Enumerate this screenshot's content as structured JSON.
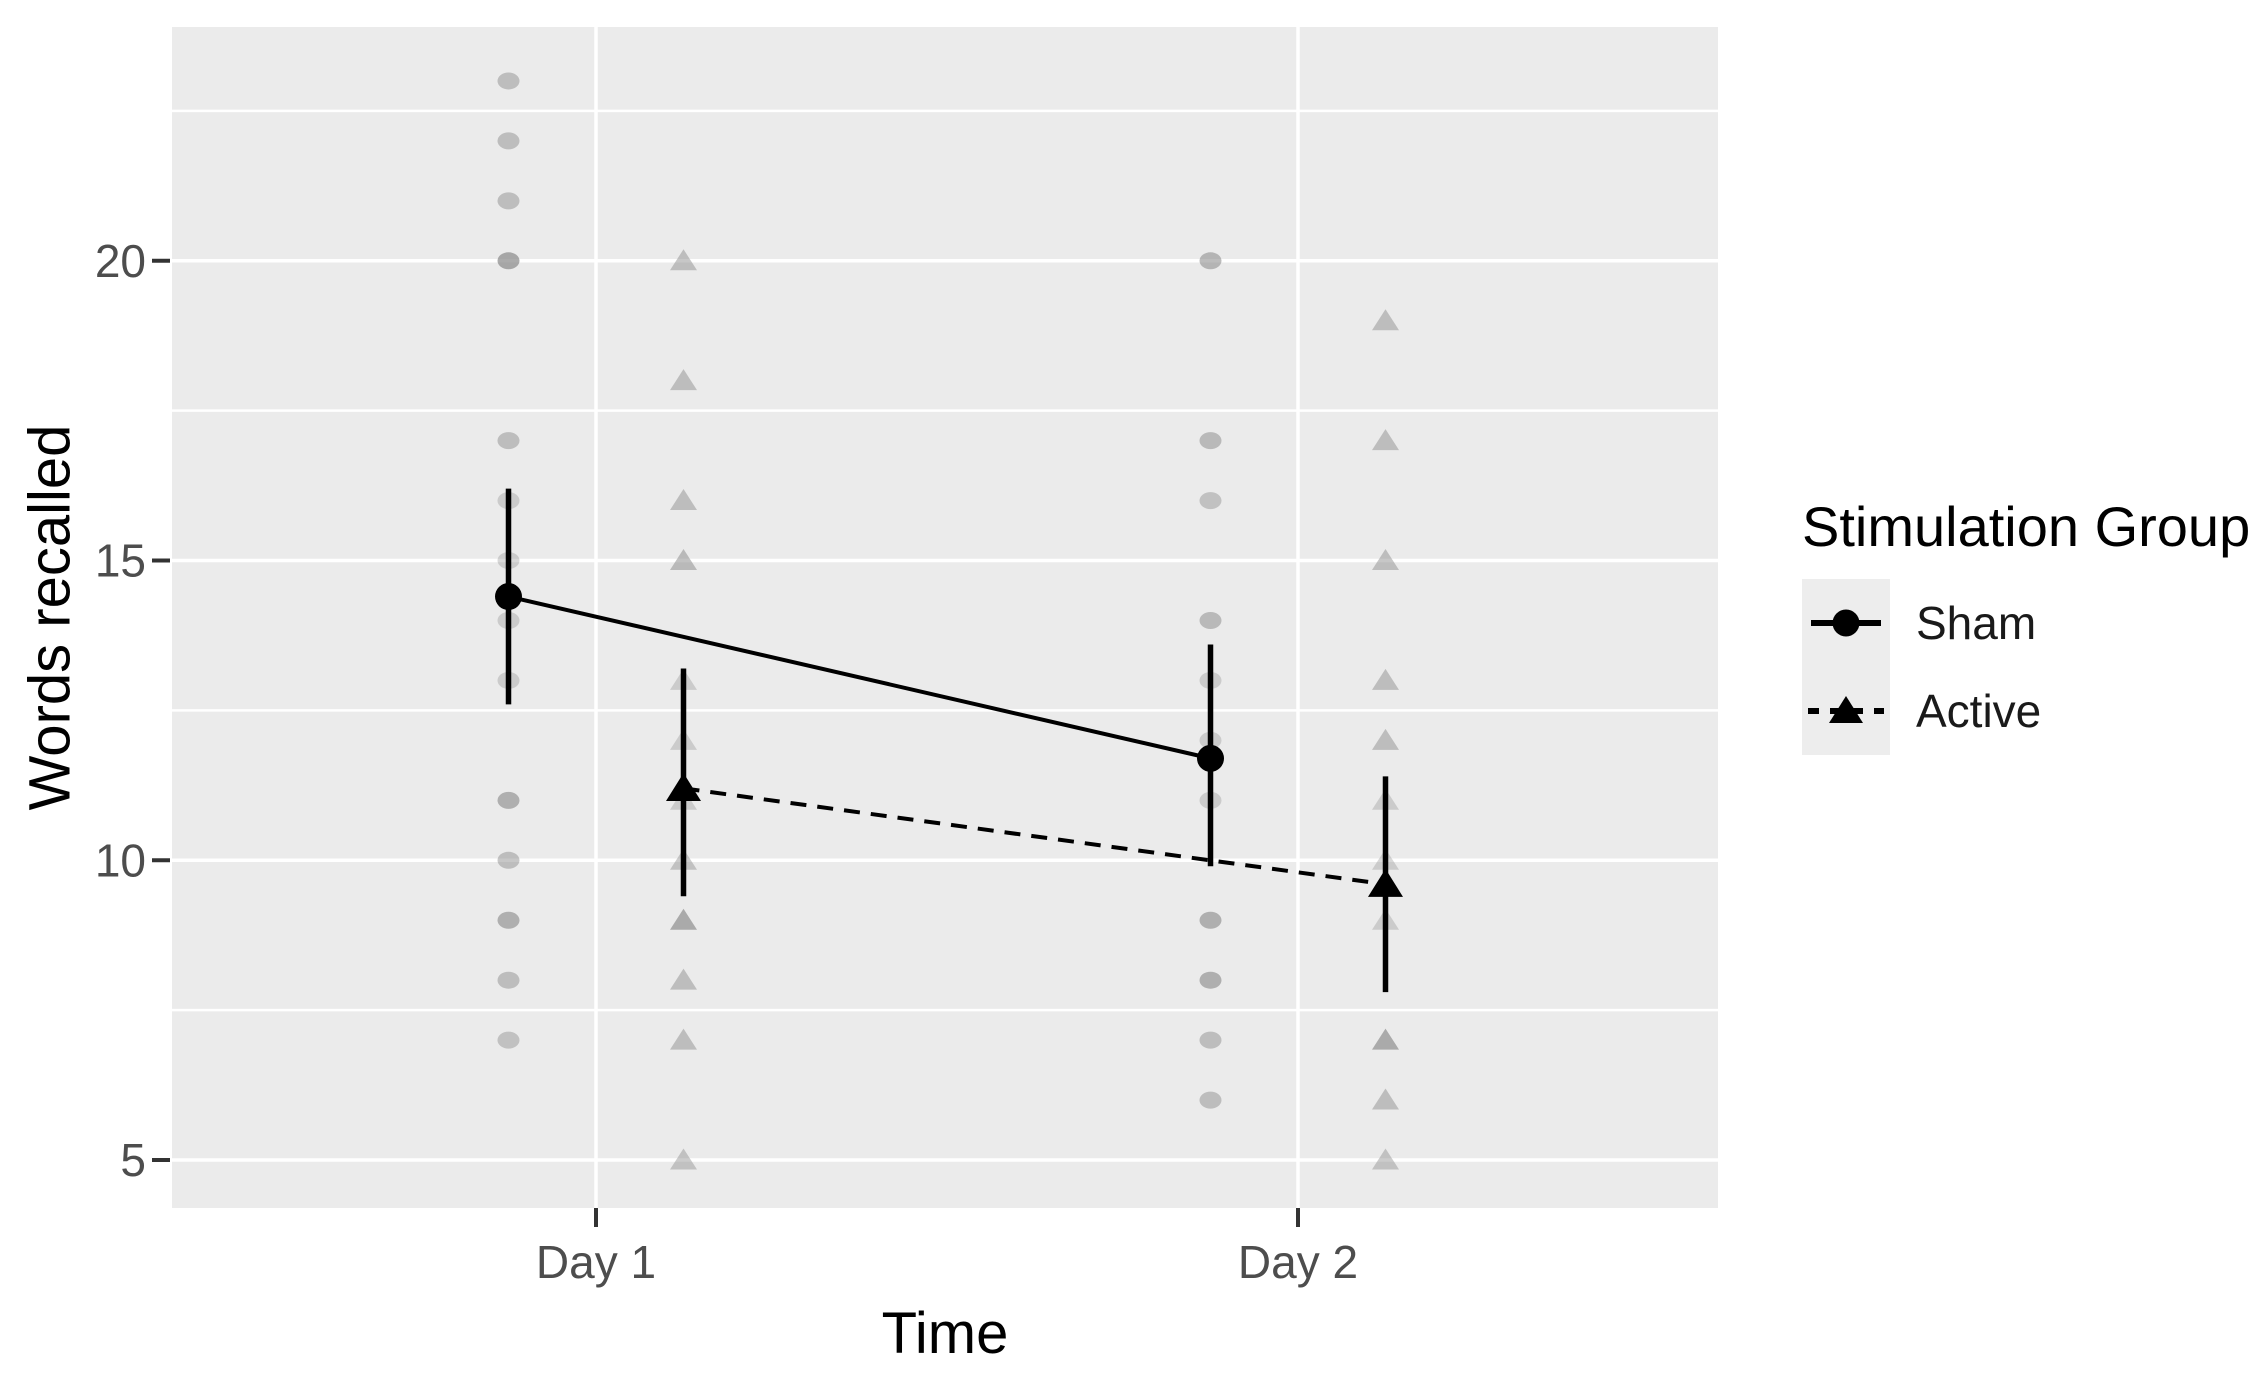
{
  "page": {
    "background": "#FFFFFF"
  },
  "chart_data": {
    "type": "line",
    "title": "",
    "xlabel": "Time",
    "ylabel": "Words recalled",
    "categories": [
      "Day 1",
      "Day 2"
    ],
    "ylim": [
      4.2,
      23.9
    ],
    "yticks": [
      5,
      10,
      15,
      20
    ],
    "ytick_labels": [
      "5",
      "10",
      "15",
      "20"
    ],
    "yticks_minor": [
      7.5,
      12.5,
      17.5,
      22.5
    ],
    "grid": true,
    "legend_title": "Stimulation Group",
    "legend_position": "right",
    "panel_bg": "#EBEBEB",
    "colors": {
      "raw_point": "#8F8F8F",
      "grid": "#FFFFFF",
      "tick_label": "#4D4D4D",
      "tick_mark": "#333333",
      "axis_title": "#000000",
      "series": "#000000",
      "legend_key_bg": "#EDEDED"
    },
    "series": [
      {
        "name": "Sham",
        "marker": "circle",
        "linestyle": "solid",
        "color": "#000000",
        "means": [
          14.4,
          11.7
        ],
        "ci_low": [
          12.6,
          9.9
        ],
        "ci_high": [
          16.2,
          13.6
        ],
        "raw_points": [
          [
            [
              23,
              0.5
            ],
            [
              22,
              0.5
            ],
            [
              21,
              0.5
            ],
            [
              20,
              0.75
            ],
            [
              17,
              0.5
            ],
            [
              16,
              0.35
            ],
            [
              15,
              0.35
            ],
            [
              14,
              0.35
            ],
            [
              13,
              0.35
            ],
            [
              11,
              0.65
            ],
            [
              10,
              0.5
            ],
            [
              9,
              0.65
            ],
            [
              8,
              0.5
            ],
            [
              7,
              0.45
            ]
          ],
          [
            [
              20,
              0.6
            ],
            [
              17,
              0.55
            ],
            [
              16,
              0.45
            ],
            [
              14,
              0.55
            ],
            [
              13,
              0.35
            ],
            [
              12,
              0.35
            ],
            [
              11,
              0.35
            ],
            [
              9,
              0.65
            ],
            [
              8,
              0.65
            ],
            [
              7,
              0.5
            ],
            [
              6,
              0.5
            ]
          ]
        ]
      },
      {
        "name": "Active",
        "marker": "triangle",
        "linestyle": "dashed",
        "color": "#000000",
        "means": [
          11.2,
          9.6
        ],
        "ci_low": [
          9.4,
          7.8
        ],
        "ci_high": [
          13.2,
          11.4
        ],
        "raw_points": [
          [
            [
              20,
              0.5
            ],
            [
              18,
              0.5
            ],
            [
              16,
              0.5
            ],
            [
              15,
              0.55
            ],
            [
              13,
              0.35
            ],
            [
              12,
              0.35
            ],
            [
              11,
              0.35
            ],
            [
              10,
              0.45
            ],
            [
              9,
              0.7
            ],
            [
              8,
              0.5
            ],
            [
              7,
              0.5
            ],
            [
              5,
              0.45
            ]
          ],
          [
            [
              19,
              0.5
            ],
            [
              17,
              0.5
            ],
            [
              15,
              0.5
            ],
            [
              13,
              0.5
            ],
            [
              12,
              0.5
            ],
            [
              11,
              0.35
            ],
            [
              10,
              0.35
            ],
            [
              9,
              0.35
            ],
            [
              7,
              0.7
            ],
            [
              6,
              0.5
            ],
            [
              5,
              0.45
            ]
          ]
        ]
      }
    ]
  }
}
